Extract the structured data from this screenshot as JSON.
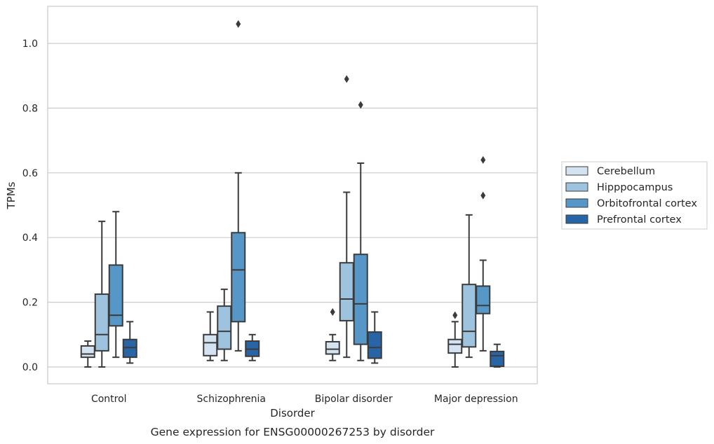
{
  "chart_data": {
    "type": "box",
    "xlabel": "Disorder",
    "ylabel": "TPMs",
    "caption": "Gene expression for ENSG00000267253 by disorder",
    "ylim": [
      -0.05,
      1.12
    ],
    "yticks": [
      0.0,
      0.2,
      0.4,
      0.6,
      0.8,
      1.0
    ],
    "grid": "horizontal",
    "legend_position": "right",
    "categories": [
      "Control",
      "Schizophrenia",
      "Bipolar disorder",
      "Major depression"
    ],
    "series": [
      {
        "name": "Cerebellum",
        "color": "#d3e3f2",
        "boxes": [
          {
            "whisker_low": 0.0,
            "q1": 0.03,
            "median": 0.04,
            "q3": 0.065,
            "whisker_high": 0.08,
            "outliers": []
          },
          {
            "whisker_low": 0.02,
            "q1": 0.035,
            "median": 0.075,
            "q3": 0.1,
            "whisker_high": 0.17,
            "outliers": []
          },
          {
            "whisker_low": 0.02,
            "q1": 0.04,
            "median": 0.055,
            "q3": 0.078,
            "whisker_high": 0.1,
            "outliers": [
              0.17
            ]
          },
          {
            "whisker_low": 0.0,
            "q1": 0.043,
            "median": 0.07,
            "q3": 0.085,
            "whisker_high": 0.14,
            "outliers": [
              0.16
            ]
          }
        ]
      },
      {
        "name": "Hipppocampus",
        "color": "#9dc3de",
        "boxes": [
          {
            "whisker_low": 0.0,
            "q1": 0.05,
            "median": 0.1,
            "q3": 0.225,
            "whisker_high": 0.45,
            "outliers": []
          },
          {
            "whisker_low": 0.02,
            "q1": 0.055,
            "median": 0.11,
            "q3": 0.188,
            "whisker_high": 0.24,
            "outliers": []
          },
          {
            "whisker_low": 0.03,
            "q1": 0.143,
            "median": 0.21,
            "q3": 0.322,
            "whisker_high": 0.54,
            "outliers": [
              0.89
            ]
          },
          {
            "whisker_low": 0.03,
            "q1": 0.062,
            "median": 0.11,
            "q3": 0.255,
            "whisker_high": 0.47,
            "outliers": []
          }
        ]
      },
      {
        "name": "Orbitofrontal cortex",
        "color": "#5697c7",
        "boxes": [
          {
            "whisker_low": 0.03,
            "q1": 0.127,
            "median": 0.16,
            "q3": 0.315,
            "whisker_high": 0.48,
            "outliers": []
          },
          {
            "whisker_low": 0.05,
            "q1": 0.14,
            "median": 0.3,
            "q3": 0.415,
            "whisker_high": 0.6,
            "outliers": [
              1.06
            ]
          },
          {
            "whisker_low": 0.02,
            "q1": 0.07,
            "median": 0.195,
            "q3": 0.348,
            "whisker_high": 0.63,
            "outliers": [
              0.81
            ]
          },
          {
            "whisker_low": 0.05,
            "q1": 0.165,
            "median": 0.19,
            "q3": 0.25,
            "whisker_high": 0.33,
            "outliers": [
              0.53,
              0.64
            ]
          }
        ]
      },
      {
        "name": "Prefrontal cortex",
        "color": "#2865a6",
        "boxes": [
          {
            "whisker_low": 0.012,
            "q1": 0.03,
            "median": 0.06,
            "q3": 0.085,
            "whisker_high": 0.14,
            "outliers": []
          },
          {
            "whisker_low": 0.02,
            "q1": 0.033,
            "median": 0.055,
            "q3": 0.08,
            "whisker_high": 0.1,
            "outliers": []
          },
          {
            "whisker_low": 0.012,
            "q1": 0.027,
            "median": 0.06,
            "q3": 0.108,
            "whisker_high": 0.17,
            "outliers": []
          },
          {
            "whisker_low": 0.0,
            "q1": 0.002,
            "median": 0.035,
            "q3": 0.048,
            "whisker_high": 0.07,
            "outliers": []
          }
        ]
      }
    ]
  }
}
